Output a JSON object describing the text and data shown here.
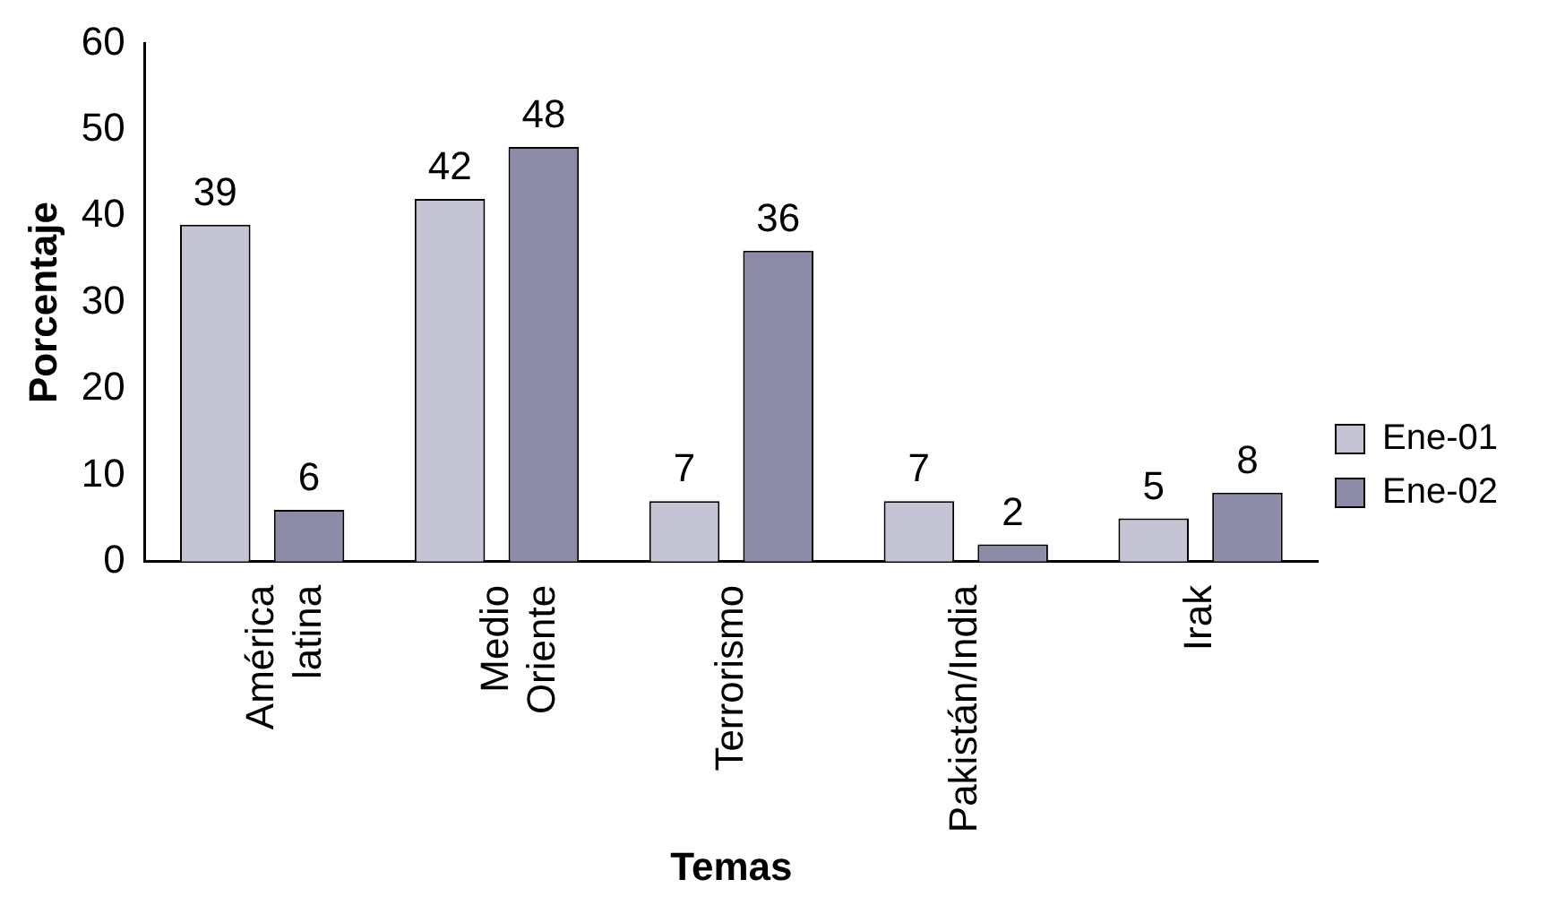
{
  "chart_data": {
    "type": "bar",
    "xlabel": "Temas",
    "ylabel": "Porcentaje",
    "categories": [
      "América latina",
      "Medio Oriente",
      "Terrorismo",
      "Pakistán/India",
      "Irak"
    ],
    "series": [
      {
        "name": "Ene-01",
        "color": "#c4c4d4",
        "values": [
          39,
          42,
          7,
          7,
          5
        ]
      },
      {
        "name": "Ene-02",
        "color": "#8c8ca8",
        "values": [
          6,
          48,
          36,
          2,
          8
        ]
      }
    ],
    "ylim": [
      0,
      60
    ],
    "yticks": [
      0,
      10,
      20,
      30,
      40,
      50,
      60
    ],
    "grid": false,
    "legend": "right",
    "data_labels": true
  }
}
